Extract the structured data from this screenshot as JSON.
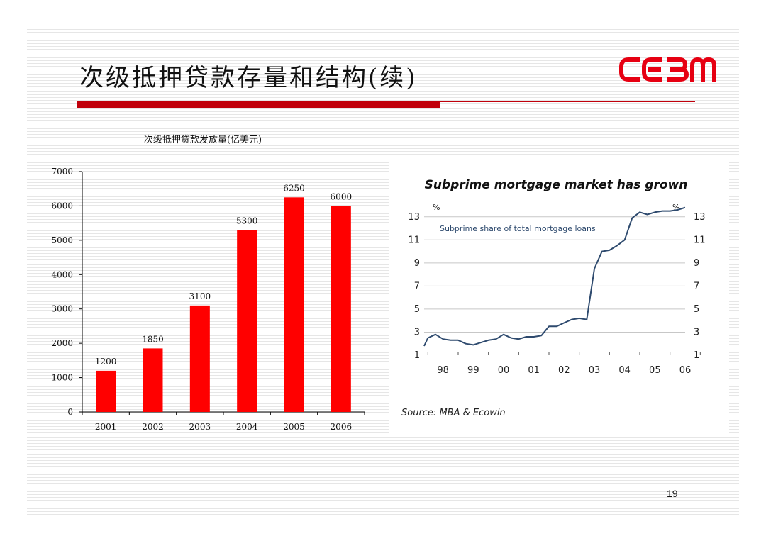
{
  "slide": {
    "title": "次级抵押贷款存量和结构(续)",
    "logo_text": "CEBM",
    "page_number": "19",
    "accent_color": "#c0000b"
  },
  "chart_data": [
    {
      "type": "bar",
      "title": "次级抵押贷款发放量(亿美元)",
      "categories": [
        "2001",
        "2002",
        "2003",
        "2004",
        "2005",
        "2006"
      ],
      "values": [
        1200,
        1850,
        3100,
        5300,
        6250,
        6000
      ],
      "ylim": [
        0,
        7000
      ],
      "yticks": [
        0,
        1000,
        2000,
        3000,
        4000,
        5000,
        6000,
        7000
      ],
      "bar_color": "#ff0000",
      "data_labels": true,
      "grid": false
    },
    {
      "type": "line",
      "title": "Subprime mortgage market has grown",
      "series": [
        {
          "name": "Subprime share of total mortgage loans",
          "color": "#2e4a6e",
          "x": [
            1997.875,
            1998.0,
            1998.25,
            1998.5,
            1998.75,
            1999.0,
            1999.25,
            1999.5,
            1999.75,
            2000.0,
            2000.25,
            2000.5,
            2000.75,
            2001.0,
            2001.25,
            2001.5,
            2001.75,
            2002.0,
            2002.25,
            2002.5,
            2002.75,
            2003.0,
            2003.25,
            2003.5,
            2003.75,
            2004.0,
            2004.25,
            2004.5,
            2004.75,
            2005.0,
            2005.25,
            2005.5,
            2005.75,
            2006.0,
            2006.25,
            2006.5
          ],
          "values": [
            1.8,
            2.5,
            2.8,
            2.4,
            2.3,
            2.3,
            2.0,
            1.9,
            2.1,
            2.3,
            2.4,
            2.8,
            2.5,
            2.4,
            2.6,
            2.6,
            2.7,
            3.5,
            3.5,
            3.8,
            4.1,
            4.2,
            4.1,
            8.5,
            10.0,
            10.1,
            10.5,
            11.0,
            12.9,
            13.4,
            13.2,
            13.4,
            13.5,
            13.5,
            13.6,
            13.8
          ]
        }
      ],
      "x_tick_labels": [
        "98",
        "99",
        "00",
        "01",
        "02",
        "03",
        "04",
        "05",
        "06"
      ],
      "y_ticks": [
        1,
        3,
        5,
        7,
        9,
        11,
        13
      ],
      "y_unit": "%",
      "ylim": [
        1,
        13.6
      ],
      "grid": true,
      "source": "Source: MBA & Ecowin"
    }
  ]
}
